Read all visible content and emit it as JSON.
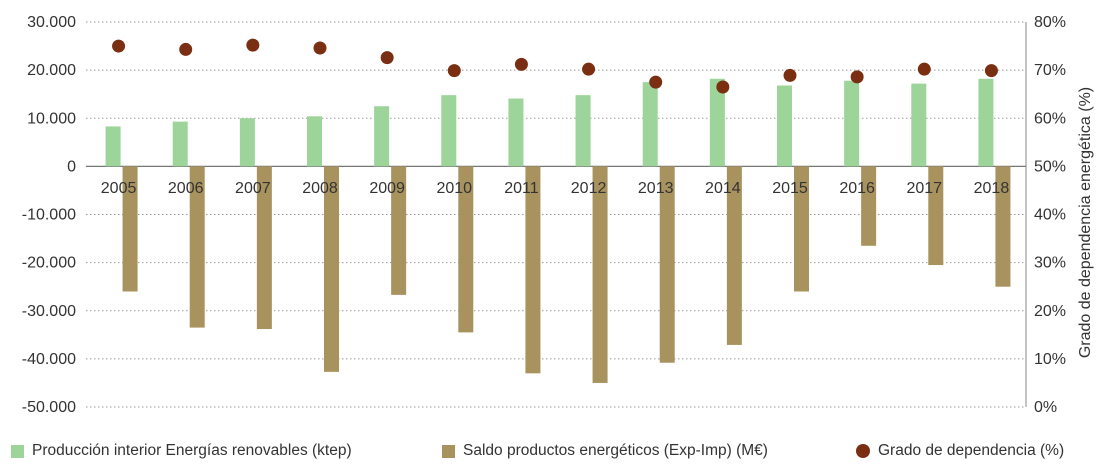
{
  "chart_data": {
    "type": "bar",
    "categories": [
      "2005",
      "2006",
      "2007",
      "2008",
      "2009",
      "2010",
      "2011",
      "2012",
      "2013",
      "2014",
      "2015",
      "2016",
      "2017",
      "2018"
    ],
    "series": [
      {
        "name": "Producción interior Energías renovables (ktep)",
        "type": "bar",
        "axis": "left",
        "color": "#9dd49a",
        "values": [
          8300,
          9300,
          10000,
          10400,
          12500,
          14800,
          14100,
          14800,
          17500,
          18200,
          16800,
          17800,
          17200,
          18200
        ]
      },
      {
        "name": "Saldo productos energéticos (Exp-Imp) (M€)",
        "type": "bar",
        "axis": "left",
        "color": "#a8935f",
        "values": [
          -26000,
          -33500,
          -33800,
          -42700,
          -26700,
          -34500,
          -43000,
          -45000,
          -40800,
          -37100,
          -26000,
          -16500,
          -20500,
          -25000
        ]
      },
      {
        "name": "Grado de dependencia (%)",
        "type": "scatter",
        "axis": "right",
        "color": "#7a2e12",
        "values": [
          75.0,
          74.3,
          75.2,
          74.6,
          72.6,
          69.9,
          71.2,
          70.2,
          67.5,
          66.5,
          68.9,
          68.6,
          70.2,
          69.9
        ]
      }
    ],
    "y_left": {
      "min": -50000,
      "max": 30000,
      "ticks": [
        {
          "value": 30000,
          "label": "30.000"
        },
        {
          "value": 20000,
          "label": "20.000"
        },
        {
          "value": 10000,
          "label": "10.000"
        },
        {
          "value": 0,
          "label": "0"
        },
        {
          "value": -10000,
          "label": "-10.000"
        },
        {
          "value": -20000,
          "label": "-20.000"
        },
        {
          "value": -30000,
          "label": "-30.000"
        },
        {
          "value": -40000,
          "label": "-40.000"
        },
        {
          "value": -50000,
          "label": "-50.000"
        }
      ]
    },
    "y_right": {
      "min": 0,
      "max": 80,
      "title": "Grado de dependencia energética (%)",
      "ticks": [
        {
          "value": 80,
          "label": "80%"
        },
        {
          "value": 70,
          "label": "70%"
        },
        {
          "value": 60,
          "label": "60%"
        },
        {
          "value": 50,
          "label": "50%"
        },
        {
          "value": 40,
          "label": "40%"
        },
        {
          "value": 30,
          "label": "30%"
        },
        {
          "value": 20,
          "label": "20%"
        },
        {
          "value": 10,
          "label": "10%"
        },
        {
          "value": 0,
          "label": "0%"
        }
      ]
    },
    "grid": "horizontal-dotted",
    "legend_position": "bottom"
  },
  "legend": {
    "renewables": "Producción interior Energías renovables (ktep)",
    "balance": "Saldo productos energéticos (Exp-Imp) (M€)",
    "dependency": "Grado de dependencia (%)"
  }
}
